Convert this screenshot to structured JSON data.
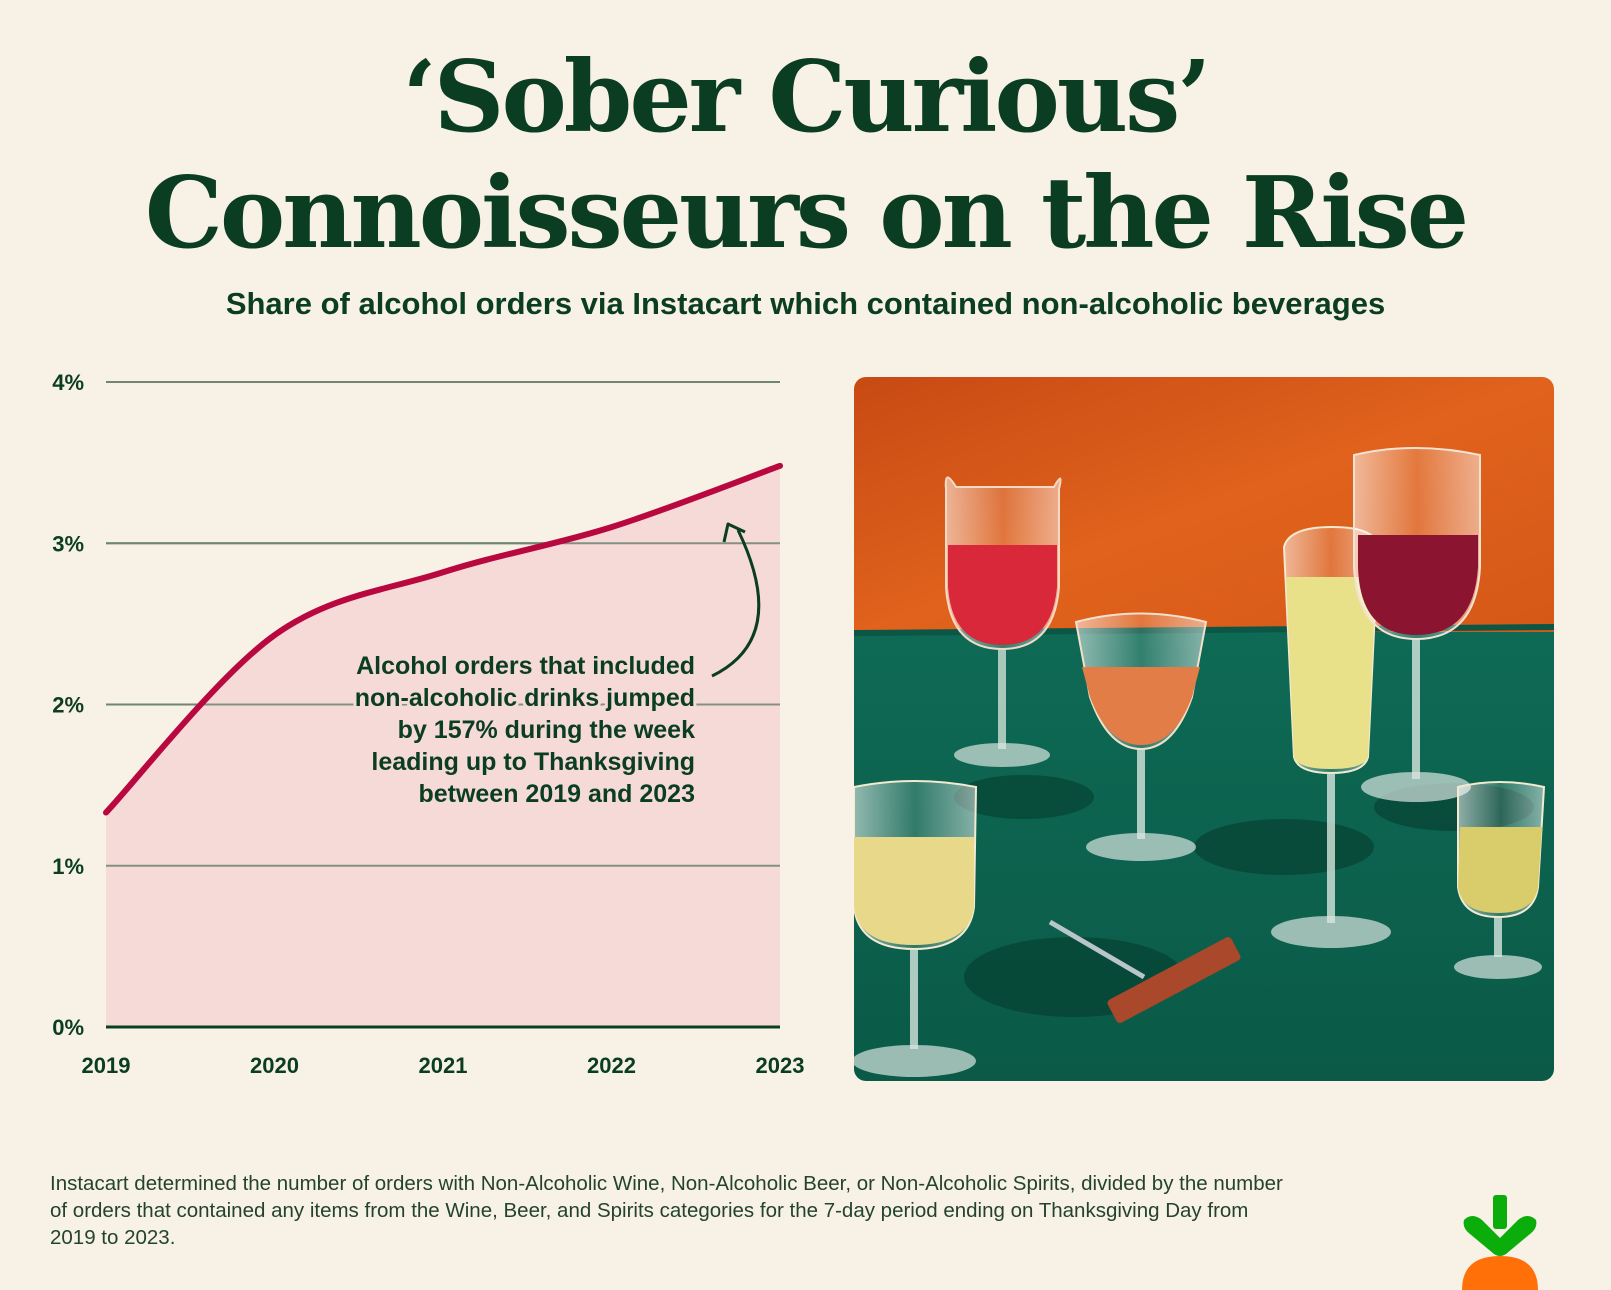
{
  "title": {
    "line1": "‘Sober Curious’",
    "line2": "Connoisseurs on the Rise"
  },
  "subtitle": "Share of alcohol orders via Instacart which contained non-alcoholic beverages",
  "chart_data": {
    "type": "area",
    "title": "Share of alcohol orders via Instacart which contained non-alcoholic beverages",
    "xlabel": "",
    "ylabel": "",
    "x": [
      2019,
      2020,
      2021,
      2022,
      2023
    ],
    "x_tick_labels": [
      "2019",
      "2020",
      "2021",
      "2022",
      "2023"
    ],
    "y_tick_labels": [
      "0%",
      "1%",
      "2%",
      "3%",
      "4%"
    ],
    "y_ticks": [
      0,
      1,
      2,
      3,
      4
    ],
    "ylim": [
      0,
      4
    ],
    "series": [
      {
        "name": "Share of alcohol orders with non-alcoholic beverages",
        "values": [
          1.33,
          2.43,
          2.82,
          3.1,
          3.48
        ]
      }
    ],
    "grid": true,
    "annotation": {
      "lines": [
        "Alcohol orders that included",
        "non-alcoholic drinks jumped",
        "by 157% during the week",
        "leading up to Thanksgiving",
        "between 2019 and 2023"
      ]
    }
  },
  "colors": {
    "line": "#b8083f",
    "fill": "#f6dad7",
    "grid": "#6f8575",
    "text": "#0b3d22",
    "background": "#f8f1e5",
    "logo_green": "#0aad0a",
    "logo_orange": "#ff7009"
  },
  "image": {
    "alt": "Glasses of wine, rosé, sparkling and non-alcoholic drinks on a green velvet table against an orange wood wall, with a corkscrew"
  },
  "footnote": "Instacart determined the number of orders with Non-Alcoholic Wine, Non-Alcoholic Beer, or Non-Alcoholic Spirits, divided by the number of orders that contained any items from the Wine, Beer, and Spirits categories for the 7-day period ending on Thanksgiving Day from 2019 to 2023.",
  "logo": {
    "icon": "instacart-carrot-icon"
  }
}
